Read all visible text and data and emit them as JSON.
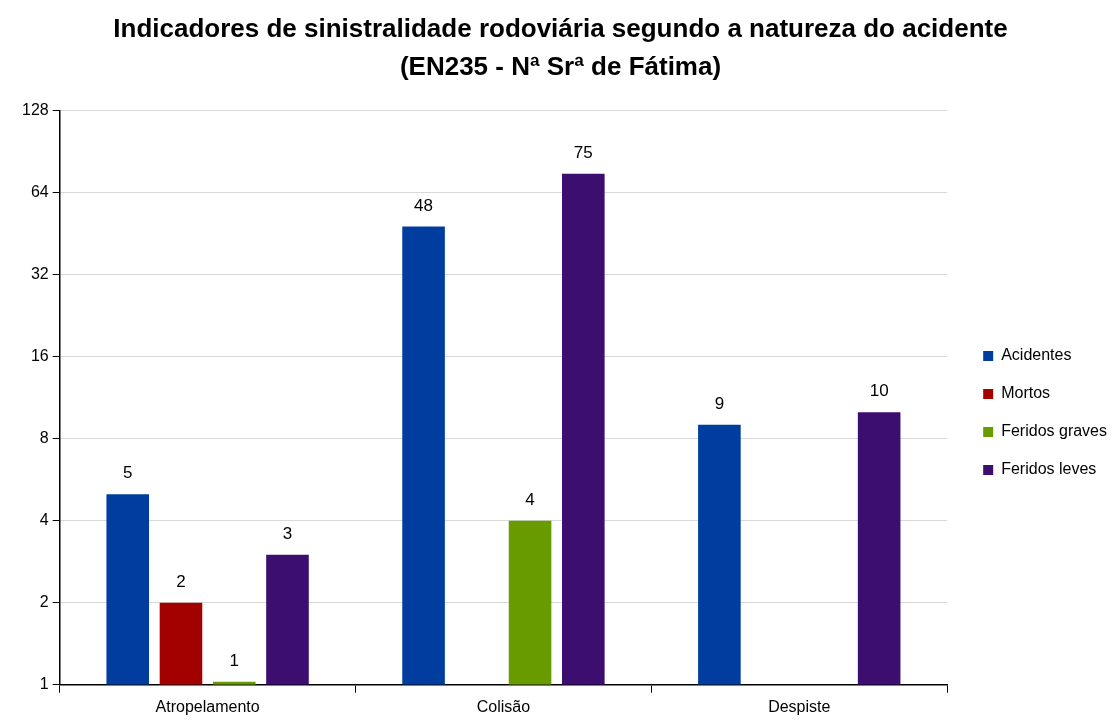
{
  "chart_data": {
    "type": "bar",
    "title": "Indicadores de sinistralidade rodoviária segundo a natureza do acidente",
    "subtitle": "(EN235 - Nª Srª de Fátima)",
    "categories": [
      "Atropelamento",
      "Colisão",
      "Despiste"
    ],
    "series": [
      {
        "name": "Acidentes",
        "color": "#003d9e",
        "values": [
          5,
          48,
          9
        ]
      },
      {
        "name": "Mortos",
        "color": "#a30000",
        "values": [
          2,
          null,
          null
        ]
      },
      {
        "name": "Feridos graves",
        "color": "#679b00",
        "values": [
          1,
          4,
          null
        ]
      },
      {
        "name": "Feridos leves",
        "color": "#3c0e6f",
        "values": [
          3,
          75,
          10
        ]
      }
    ],
    "log": true,
    "ylim": [
      1,
      128
    ],
    "yticks": [
      1,
      2,
      4,
      8,
      16,
      32,
      64,
      128
    ],
    "grid": "y",
    "legend": "right",
    "data_labels": true
  }
}
